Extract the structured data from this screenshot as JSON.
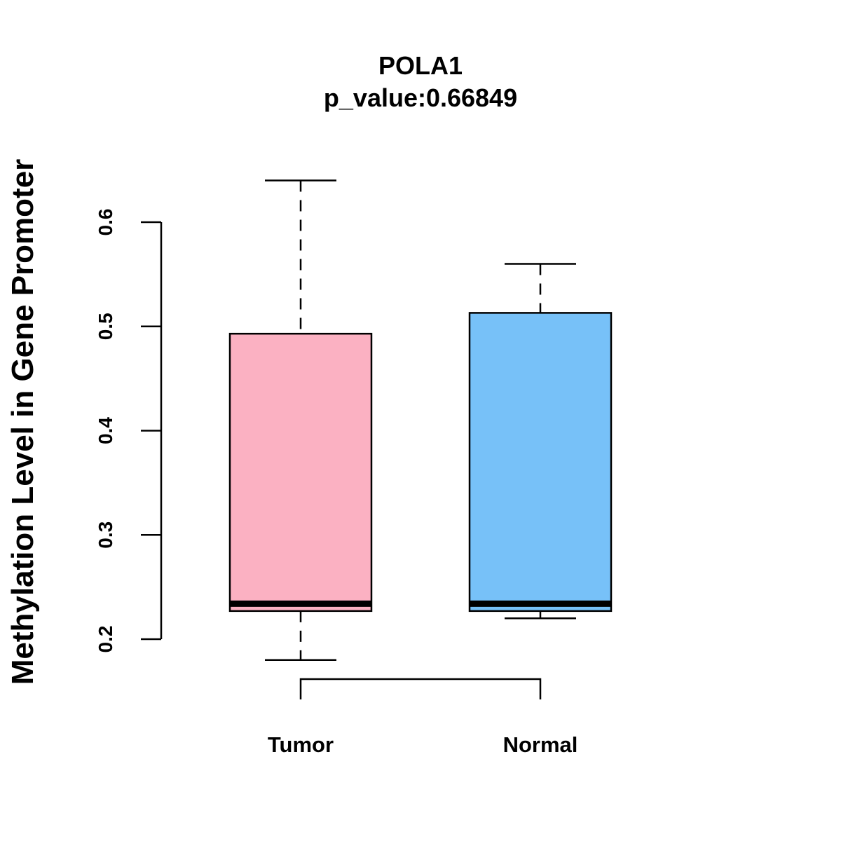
{
  "chart_data": {
    "type": "boxplot",
    "title": "POLA1",
    "subtitle": "p_value:0.66849",
    "xlabel": "",
    "ylabel": "Methylation Level in Gene Promoter",
    "ylim": [
      0.2,
      0.6
    ],
    "yticks": [
      0.2,
      0.3,
      0.4,
      0.5,
      0.6
    ],
    "ytick_labels": [
      "0.2",
      "0.3",
      "0.4",
      "0.5",
      "0.6"
    ],
    "categories": [
      "Tumor",
      "Normal"
    ],
    "boxes": [
      {
        "name": "Tumor",
        "color": "#FBB1C2",
        "min": 0.18,
        "q1": 0.227,
        "median": 0.234,
        "q3": 0.493,
        "max": 0.64
      },
      {
        "name": "Normal",
        "color": "#77C1F8",
        "min": 0.22,
        "q1": 0.227,
        "median": 0.234,
        "q3": 0.513,
        "max": 0.56
      }
    ],
    "comparison_bracket": {
      "from": "Tumor",
      "to": "Normal"
    },
    "grid": false
  }
}
